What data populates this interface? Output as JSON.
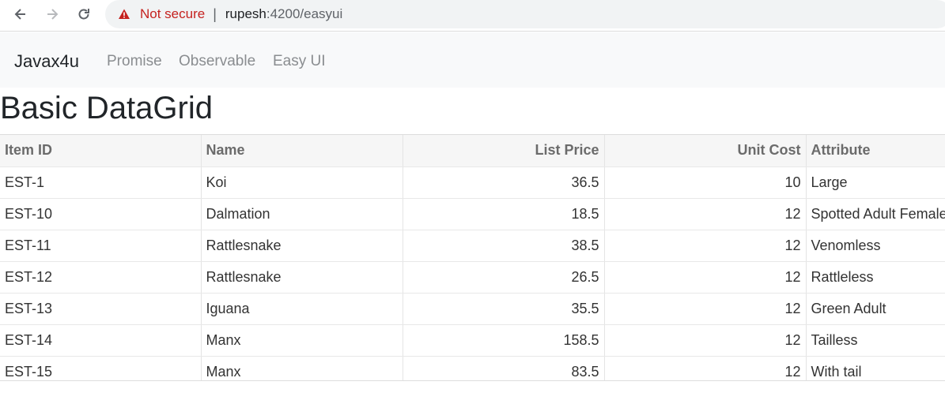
{
  "browser": {
    "security_text": "Not secure",
    "separator": "|",
    "url_host": "rupesh",
    "url_path": ":4200/easyui"
  },
  "navbar": {
    "brand": "Javax4u",
    "links": [
      "Promise",
      "Observable",
      "Easy UI"
    ]
  },
  "page": {
    "title": "Basic DataGrid"
  },
  "grid": {
    "columns": [
      "Item ID",
      "Name",
      "List Price",
      "Unit Cost",
      "Attribute"
    ],
    "rows": [
      [
        "EST-1",
        "Koi",
        "36.5",
        "10",
        "Large"
      ],
      [
        "EST-10",
        "Dalmation",
        "18.5",
        "12",
        "Spotted Adult Female"
      ],
      [
        "EST-11",
        "Rattlesnake",
        "38.5",
        "12",
        "Venomless"
      ],
      [
        "EST-12",
        "Rattlesnake",
        "26.5",
        "12",
        "Rattleless"
      ],
      [
        "EST-13",
        "Iguana",
        "35.5",
        "12",
        "Green Adult"
      ],
      [
        "EST-14",
        "Manx",
        "158.5",
        "12",
        "Tailless"
      ],
      [
        "EST-15",
        "Manx",
        "83.5",
        "12",
        "With tail"
      ]
    ]
  },
  "colors": {
    "warning": "#c5221f",
    "navbar_bg": "#f8f9fa",
    "header_bg": "#f6f6f6"
  }
}
